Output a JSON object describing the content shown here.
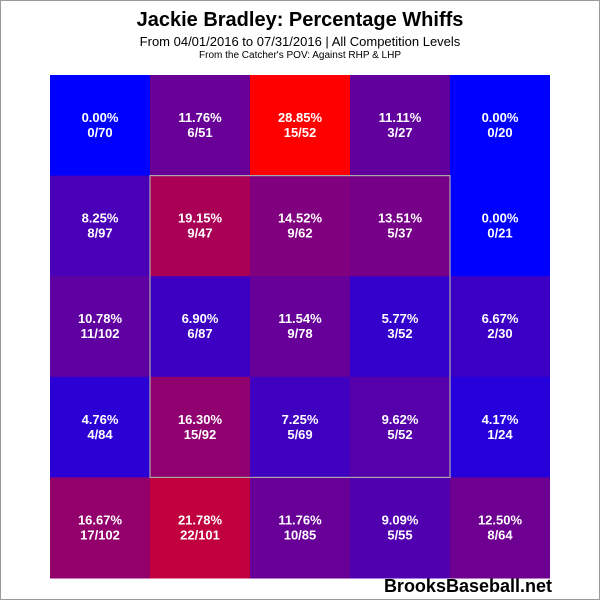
{
  "title": "Jackie Bradley: Percentage Whiffs",
  "subtitle": "From 04/01/2016 to 07/31/2016 | All Competition Levels",
  "pov": "From the Catcher's POV:  Against RHP & LHP",
  "brand": "BrooksBaseball.net",
  "chart_data": {
    "type": "heatmap",
    "rows": 5,
    "cols": 5,
    "strike_zone": {
      "rows": [
        1,
        3
      ],
      "cols": [
        1,
        3
      ]
    },
    "color_scale": {
      "low": "#0000ff",
      "high": "#ff0000",
      "min": 0,
      "max": 28.85
    },
    "cells": [
      [
        {
          "pct": "0.00%",
          "ratio": "0/70",
          "value": 0.0
        },
        {
          "pct": "11.76%",
          "ratio": "6/51",
          "value": 11.76
        },
        {
          "pct": "28.85%",
          "ratio": "15/52",
          "value": 28.85
        },
        {
          "pct": "11.11%",
          "ratio": "3/27",
          "value": 11.11
        },
        {
          "pct": "0.00%",
          "ratio": "0/20",
          "value": 0.0
        }
      ],
      [
        {
          "pct": "8.25%",
          "ratio": "8/97",
          "value": 8.25
        },
        {
          "pct": "19.15%",
          "ratio": "9/47",
          "value": 19.15
        },
        {
          "pct": "14.52%",
          "ratio": "9/62",
          "value": 14.52
        },
        {
          "pct": "13.51%",
          "ratio": "5/37",
          "value": 13.51
        },
        {
          "pct": "0.00%",
          "ratio": "0/21",
          "value": 0.0
        }
      ],
      [
        {
          "pct": "10.78%",
          "ratio": "11/102",
          "value": 10.78
        },
        {
          "pct": "6.90%",
          "ratio": "6/87",
          "value": 6.9
        },
        {
          "pct": "11.54%",
          "ratio": "9/78",
          "value": 11.54
        },
        {
          "pct": "5.77%",
          "ratio": "3/52",
          "value": 5.77
        },
        {
          "pct": "6.67%",
          "ratio": "2/30",
          "value": 6.67
        }
      ],
      [
        {
          "pct": "4.76%",
          "ratio": "4/84",
          "value": 4.76
        },
        {
          "pct": "16.30%",
          "ratio": "15/92",
          "value": 16.3
        },
        {
          "pct": "7.25%",
          "ratio": "5/69",
          "value": 7.25
        },
        {
          "pct": "9.62%",
          "ratio": "5/52",
          "value": 9.62
        },
        {
          "pct": "4.17%",
          "ratio": "1/24",
          "value": 4.17
        }
      ],
      [
        {
          "pct": "16.67%",
          "ratio": "17/102",
          "value": 16.67
        },
        {
          "pct": "21.78%",
          "ratio": "22/101",
          "value": 21.78
        },
        {
          "pct": "11.76%",
          "ratio": "10/85",
          "value": 11.76
        },
        {
          "pct": "9.09%",
          "ratio": "5/55",
          "value": 9.09
        },
        {
          "pct": "12.50%",
          "ratio": "8/64",
          "value": 12.5
        }
      ]
    ]
  }
}
